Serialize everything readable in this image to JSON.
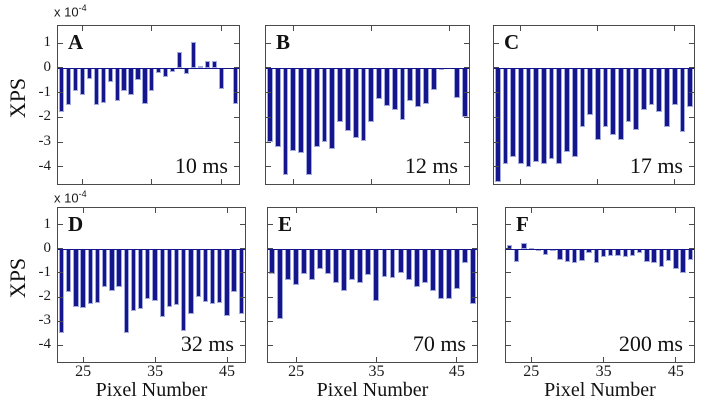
{
  "figure": {
    "ylabel": "XPS",
    "xlabel": "Pixel Number",
    "multiplier": {
      "base": "x 10",
      "exp": "-4"
    },
    "colors": {
      "bar_fill": "#15158c",
      "bar_edge": "#a2aade",
      "axis": "#4a4a4a",
      "text": "#111111",
      "background": "#ffffff"
    }
  },
  "chart_data": {
    "type": "bar",
    "title": "",
    "xlabel": "Pixel Number",
    "ylabel": "XPS",
    "y_multiplier": "x 10^-4",
    "ylim": [
      -4.7,
      1.7
    ],
    "x": [
      22,
      23,
      24,
      25,
      26,
      27,
      28,
      29,
      30,
      31,
      32,
      33,
      34,
      35,
      36,
      37,
      38,
      39,
      40,
      41,
      42,
      43,
      44,
      45,
      46,
      47
    ],
    "x_ticks": [
      25,
      35,
      45
    ],
    "y_ticks": [
      1,
      0,
      -1,
      -2,
      -3,
      -4
    ],
    "grid": false,
    "legend": "none",
    "series": [
      {
        "letter": "A",
        "time_label": "10 ms",
        "values": [
          -1.8,
          -1.5,
          -0.95,
          -1.1,
          -0.45,
          -1.5,
          -1.4,
          -0.55,
          -1.35,
          -0.95,
          -1.1,
          -0.5,
          -1.45,
          -0.95,
          -0.2,
          -0.35,
          -0.15,
          0.65,
          -0.25,
          1.05,
          0.08,
          0.3,
          0.27,
          -0.85,
          0,
          -1.45
        ]
      },
      {
        "letter": "B",
        "time_label": "12 ms",
        "values": [
          -3.0,
          -3.2,
          -4.35,
          -3.35,
          -3.45,
          -4.35,
          -3.2,
          -3.0,
          -3.3,
          -2.2,
          -2.55,
          -2.85,
          -2.95,
          -2.2,
          -1.25,
          -1.55,
          -1.7,
          -2.1,
          -1.35,
          -1.6,
          -1.45,
          -0.9,
          -0.05,
          0,
          -1.2,
          -2.0
        ]
      },
      {
        "letter": "C",
        "time_label": "17 ms",
        "values": [
          -4.6,
          -3.9,
          -3.6,
          -3.9,
          -4.0,
          -3.8,
          -3.9,
          -3.7,
          -3.9,
          -3.4,
          -3.6,
          -2.4,
          -1.9,
          -2.9,
          -2.4,
          -2.7,
          -2.9,
          -2.2,
          -2.5,
          -1.7,
          -1.5,
          -1.8,
          -2.4,
          -1.5,
          -2.6,
          -1.6
        ]
      },
      {
        "letter": "D",
        "time_label": "32 ms",
        "values": [
          -3.5,
          -1.8,
          -2.4,
          -2.45,
          -2.3,
          -2.25,
          -1.6,
          -1.75,
          -1.6,
          -3.5,
          -2.6,
          -2.5,
          -2.1,
          -2.15,
          -2.85,
          -2.4,
          -2.35,
          -3.4,
          -2.7,
          -2.0,
          -2.2,
          -2.3,
          -2.25,
          -2.8,
          -1.8,
          -2.7
        ]
      },
      {
        "letter": "E",
        "time_label": "70 ms",
        "values": [
          -1.05,
          -2.9,
          -1.3,
          -1.5,
          -1.05,
          -1.3,
          -0.85,
          -1.05,
          -1.4,
          -1.75,
          -1.3,
          -1.4,
          -1.1,
          -2.15,
          -1.15,
          -1.2,
          -1.0,
          -1.3,
          -1.6,
          -1.4,
          -1.75,
          -2.1,
          -2.1,
          -1.65,
          -0.6,
          -2.3
        ]
      },
      {
        "letter": "F",
        "time_label": "200 ms",
        "values": [
          0.15,
          -0.55,
          0.25,
          0.05,
          -0.1,
          -0.25,
          -0.05,
          -0.45,
          -0.55,
          -0.6,
          -0.5,
          -0.15,
          -0.6,
          -0.35,
          -0.3,
          -0.3,
          -0.35,
          -0.3,
          -0.15,
          -0.55,
          -0.6,
          -0.75,
          -0.5,
          -0.85,
          -1.0,
          -0.45
        ]
      }
    ]
  }
}
